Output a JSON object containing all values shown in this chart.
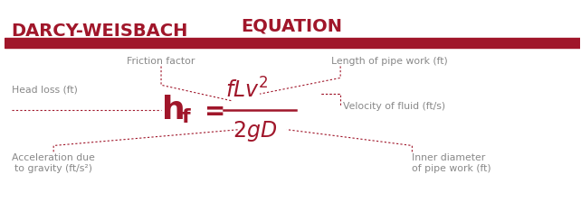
{
  "dark_red": "#A0162A",
  "gray": "#888888",
  "title_line1": "DARCY-WEISBACH",
  "title_line2": "EQUATION",
  "labels": {
    "friction_factor": "Friction factor",
    "length": "Length of pipe work (ft)",
    "head_loss": "Head loss (ft)",
    "velocity": "Velocity of fluid (ft/s)",
    "acceleration": "Acceleration due\nto gravity (ft/s²)",
    "inner_diameter": "Inner diameter\nof pipe work (ft)"
  }
}
